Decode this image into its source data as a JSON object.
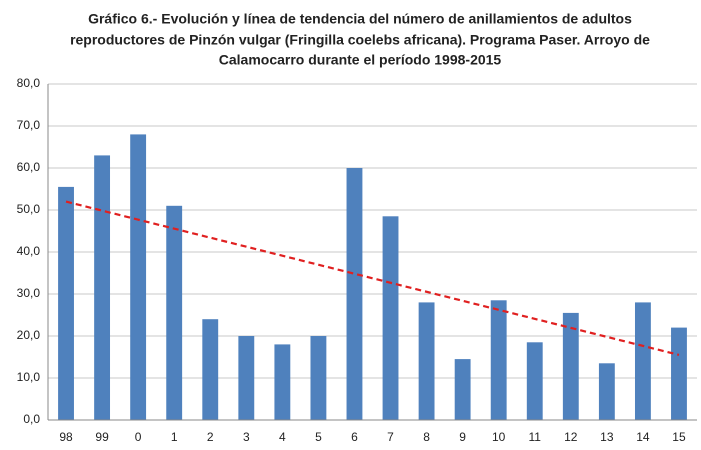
{
  "chart_data": {
    "type": "bar",
    "title": [
      "Gráfico 6.- Evolución y línea de tendencia del número de anillamientos de adultos",
      "reproductores de Pinzón vulgar (Fringilla coelebs africana). Programa Paser. Arroyo de",
      "Calamocarro durante el período 1998-2015"
    ],
    "categories": [
      "98",
      "99",
      "0",
      "1",
      "2",
      "3",
      "4",
      "5",
      "6",
      "7",
      "8",
      "9",
      "10",
      "11",
      "12",
      "13",
      "14",
      "15"
    ],
    "values": [
      55.5,
      63,
      68,
      51,
      24,
      20,
      18,
      20,
      60,
      48.5,
      28,
      14.5,
      28.5,
      18.5,
      25.5,
      13.5,
      28,
      22
    ],
    "color": "#4f81bd",
    "trendline": {
      "values": [
        52,
        15.5
      ],
      "color": "#e02020"
    },
    "ylim": [
      0,
      80
    ],
    "yticks": [
      {
        "value": 0,
        "label": "0,0"
      },
      {
        "value": 10,
        "label": "10,0"
      },
      {
        "value": 20,
        "label": "20,0"
      },
      {
        "value": 30,
        "label": "30,0"
      },
      {
        "value": 40,
        "label": "40,0"
      },
      {
        "value": 50,
        "label": "50,0"
      },
      {
        "value": 60,
        "label": "60,0"
      },
      {
        "value": 70,
        "label": "70,0"
      },
      {
        "value": 80,
        "label": "80,0"
      }
    ],
    "grid": true
  }
}
